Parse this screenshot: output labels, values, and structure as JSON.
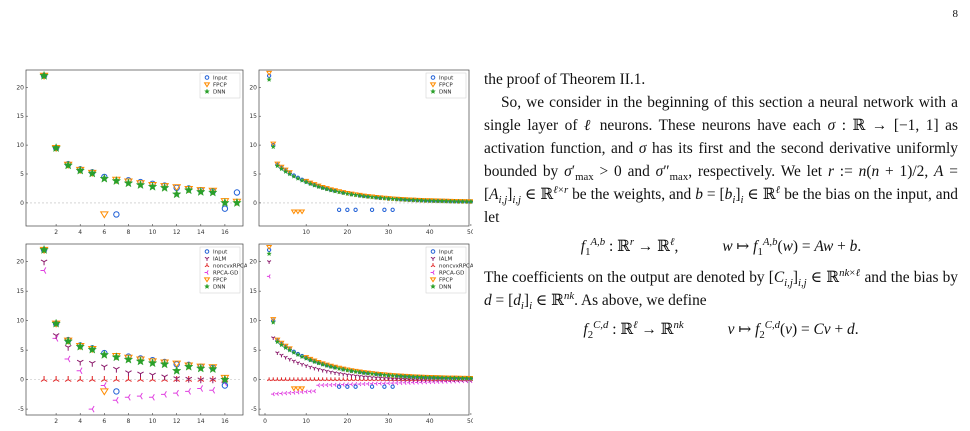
{
  "page_number": "8",
  "figure": {
    "panels": [
      {
        "id": "top-left",
        "x_ticks": [
          2,
          4,
          6,
          8,
          10,
          12,
          14,
          16
        ],
        "y_ticks": [
          0,
          5,
          10,
          15,
          20
        ],
        "xlim": [
          0,
          17
        ],
        "ylim": [
          -4,
          23
        ],
        "legend": [
          "Input",
          "FPCP",
          "DNN"
        ],
        "series": [
          {
            "name": "Input",
            "marker": "circle",
            "color": "#1f5fd6",
            "points": [
              [
                1,
                22
              ],
              [
                2,
                9.5
              ],
              [
                3,
                6.7
              ],
              [
                4,
                5.8
              ],
              [
                5,
                5.3
              ],
              [
                6,
                4.5
              ],
              [
                7,
                -2
              ],
              [
                8,
                3.9
              ],
              [
                9,
                3.6
              ],
              [
                10,
                3.3
              ],
              [
                11,
                3
              ],
              [
                12,
                2.6
              ],
              [
                13,
                2.5
              ],
              [
                14,
                2.2
              ],
              [
                15,
                2
              ],
              [
                16,
                -1
              ],
              [
                17,
                1.8
              ]
            ]
          },
          {
            "name": "FPCP",
            "marker": "triangle-down",
            "color": "#ff8c00",
            "points": [
              [
                1,
                22
              ],
              [
                2,
                9.5
              ],
              [
                3,
                6.6
              ],
              [
                4,
                5.7
              ],
              [
                5,
                5.2
              ],
              [
                6,
                -2
              ],
              [
                7,
                4
              ],
              [
                8,
                3.7
              ],
              [
                9,
                3.4
              ],
              [
                10,
                3.1
              ],
              [
                11,
                2.9
              ],
              [
                12,
                2.7
              ],
              [
                13,
                2.4
              ],
              [
                14,
                2.2
              ],
              [
                15,
                2.1
              ],
              [
                16,
                0.3
              ],
              [
                17,
                0.2
              ]
            ]
          },
          {
            "name": "DNN",
            "marker": "star",
            "color": "#2aa02a",
            "points": [
              [
                1,
                22
              ],
              [
                2,
                9.5
              ],
              [
                3,
                6.5
              ],
              [
                4,
                5.6
              ],
              [
                5,
                5.1
              ],
              [
                6,
                4.2
              ],
              [
                7,
                3.8
              ],
              [
                8,
                3.4
              ],
              [
                9,
                3.1
              ],
              [
                10,
                2.8
              ],
              [
                11,
                2.6
              ],
              [
                12,
                1.5
              ],
              [
                13,
                2.2
              ],
              [
                14,
                1.9
              ],
              [
                15,
                1.8
              ],
              [
                16,
                0
              ],
              [
                17,
                0
              ]
            ]
          }
        ]
      },
      {
        "id": "top-right",
        "x_ticks": [
          10,
          20,
          30,
          40,
          50
        ],
        "y_ticks": [
          0,
          5,
          10,
          15,
          20
        ],
        "xlim": [
          0,
          50
        ],
        "ylim": [
          -4,
          23
        ],
        "legend": [
          "Input",
          "FPCP",
          "DNN"
        ],
        "dense": {
          "n": 50,
          "peak": 22,
          "second": 10,
          "decay": 0.085,
          "amp": 6.5,
          "neg_fpcp": [
            7,
            8,
            9
          ],
          "neg_input": [
            18,
            20,
            22,
            26,
            29,
            31
          ]
        }
      },
      {
        "id": "bottom-left",
        "x_ticks": [
          2,
          4,
          6,
          8,
          10,
          12,
          14,
          16
        ],
        "y_ticks": [
          -5,
          0,
          5,
          10,
          15,
          20
        ],
        "xlim": [
          0,
          17
        ],
        "ylim": [
          -6,
          23
        ],
        "legend": [
          "Input",
          "IALM",
          "noncvxRPCA",
          "RPCA-GD",
          "FPCP",
          "DNN"
        ],
        "series": [
          {
            "name": "Input",
            "marker": "circle",
            "color": "#1f5fd6",
            "points": [
              [
                1,
                22
              ],
              [
                2,
                9.5
              ],
              [
                3,
                6.7
              ],
              [
                4,
                5.8
              ],
              [
                5,
                5.3
              ],
              [
                6,
                4.5
              ],
              [
                7,
                -2
              ],
              [
                8,
                3.9
              ],
              [
                9,
                3.6
              ],
              [
                10,
                3.3
              ],
              [
                11,
                3
              ],
              [
                12,
                2.6
              ],
              [
                13,
                2.5
              ],
              [
                14,
                2.2
              ],
              [
                15,
                2
              ],
              [
                16,
                -1
              ]
            ]
          },
          {
            "name": "IALM",
            "marker": "tri-down",
            "color": "#8b1a6b",
            "points": [
              [
                1,
                20
              ],
              [
                2,
                7.5
              ],
              [
                3,
                5.5
              ],
              [
                4,
                3
              ],
              [
                5,
                2.8
              ],
              [
                6,
                2.2
              ],
              [
                7,
                1.8
              ],
              [
                8,
                1.2
              ],
              [
                9,
                1
              ],
              [
                10,
                0.8
              ],
              [
                11,
                0.5
              ],
              [
                12,
                0.2
              ],
              [
                13,
                0.1
              ],
              [
                14,
                0
              ],
              [
                15,
                0
              ],
              [
                16,
                0
              ]
            ]
          },
          {
            "name": "noncvxRPCA",
            "marker": "tri-up",
            "color": "#e02020",
            "points": [
              [
                1,
                0
              ],
              [
                2,
                0
              ],
              [
                3,
                0
              ],
              [
                4,
                0
              ],
              [
                5,
                0
              ],
              [
                6,
                0
              ],
              [
                7,
                0
              ],
              [
                8,
                0
              ],
              [
                9,
                0
              ],
              [
                10,
                0
              ],
              [
                11,
                0
              ],
              [
                12,
                0
              ],
              [
                13,
                0
              ],
              [
                14,
                0
              ],
              [
                15,
                0
              ],
              [
                16,
                0
              ]
            ]
          },
          {
            "name": "RPCA-GD",
            "marker": "tri-left",
            "color": "#e040e0",
            "points": [
              [
                1,
                18.5
              ],
              [
                2,
                7
              ],
              [
                3,
                3.5
              ],
              [
                4,
                1.5
              ],
              [
                5,
                -5
              ],
              [
                6,
                -1
              ],
              [
                7,
                -3.5
              ],
              [
                8,
                -3
              ],
              [
                9,
                -2.8
              ],
              [
                10,
                -3
              ],
              [
                11,
                -2.5
              ],
              [
                12,
                -2.3
              ],
              [
                13,
                -2
              ],
              [
                14,
                -1.5
              ],
              [
                15,
                -1.8
              ],
              [
                16,
                -0.5
              ]
            ]
          },
          {
            "name": "FPCP",
            "marker": "triangle-down",
            "color": "#ff8c00",
            "points": [
              [
                1,
                22
              ],
              [
                2,
                9.5
              ],
              [
                3,
                6.6
              ],
              [
                4,
                5.7
              ],
              [
                5,
                5.2
              ],
              [
                6,
                -2
              ],
              [
                7,
                4
              ],
              [
                8,
                3.7
              ],
              [
                9,
                3.4
              ],
              [
                10,
                3.1
              ],
              [
                11,
                2.9
              ],
              [
                12,
                2.7
              ],
              [
                13,
                2.4
              ],
              [
                14,
                2.2
              ],
              [
                15,
                2.1
              ],
              [
                16,
                0.3
              ]
            ]
          },
          {
            "name": "DNN",
            "marker": "star",
            "color": "#2aa02a",
            "points": [
              [
                1,
                22
              ],
              [
                2,
                9.5
              ],
              [
                3,
                6.5
              ],
              [
                4,
                5.6
              ],
              [
                5,
                5.1
              ],
              [
                6,
                4.2
              ],
              [
                7,
                3.8
              ],
              [
                8,
                3.4
              ],
              [
                9,
                3.1
              ],
              [
                10,
                2.8
              ],
              [
                11,
                2.6
              ],
              [
                12,
                1.5
              ],
              [
                13,
                2.2
              ],
              [
                14,
                1.9
              ],
              [
                15,
                1.8
              ],
              [
                16,
                0
              ]
            ]
          }
        ]
      },
      {
        "id": "bottom-right",
        "x_ticks": [
          0,
          10,
          20,
          30,
          40,
          50
        ],
        "y_ticks": [
          -5,
          0,
          5,
          10,
          15,
          20
        ],
        "xlim": [
          0,
          50
        ],
        "ylim": [
          -6,
          23
        ],
        "legend": [
          "Input",
          "IALM",
          "noncvxRPCA",
          "RPCA-GD",
          "FPCP",
          "DNN"
        ],
        "dense": {
          "n": 50,
          "peak": 22,
          "second": 10,
          "decay": 0.085,
          "amp": 6.5,
          "neg_fpcp": [
            7,
            8,
            9
          ],
          "neg_input": [
            18,
            20,
            22,
            26,
            29,
            31
          ],
          "extra": true
        }
      }
    ]
  },
  "text": {
    "p1": "the proof of Theorem II.1.",
    "p2_a": "So, we consider in the beginning of this section a neural network with a single layer of ",
    "p2_b": " neurons. These neurons have each ",
    "p2_c": " as activation function, and ",
    "p2_d": " has its first and the second derivative uniformly bounded by ",
    "p2_e": " and ",
    "p2_f": ", respectively. We let ",
    "p2_g": " be the weights, and ",
    "p2_h": " be the bias on the input, and let",
    "p3_a": "The coefficients on the output are denoted by ",
    "p3_b": " and the bias by ",
    "p3_c": ". As above, we define"
  }
}
